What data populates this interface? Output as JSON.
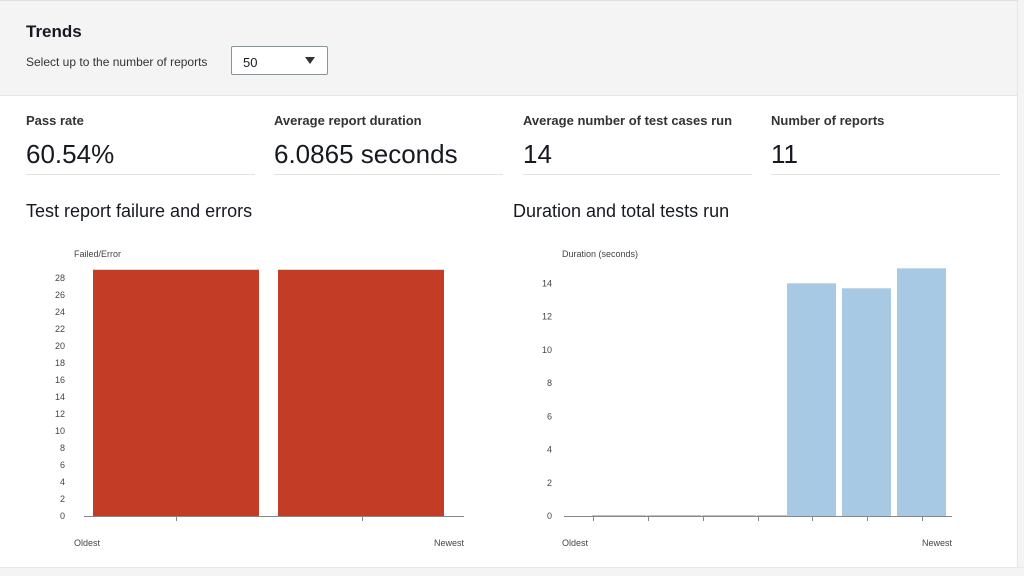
{
  "header": {
    "title": "Trends",
    "select_label": "Select up to the number of reports",
    "select_value": "50"
  },
  "stats": [
    {
      "label": "Pass rate",
      "value": "60.54%"
    },
    {
      "label": "Average report duration",
      "value": "6.0865 seconds"
    },
    {
      "label": "Average number of test cases run",
      "value": "14"
    },
    {
      "label": "Number of reports",
      "value": "11"
    }
  ],
  "chart_data": [
    {
      "type": "bar",
      "title": "Test report failure and errors",
      "ylabel": "Failed/Error",
      "x_start_label": "Oldest",
      "x_end_label": "Newest",
      "yticks": [
        0,
        2,
        4,
        6,
        8,
        10,
        12,
        14,
        16,
        18,
        20,
        22,
        24,
        26,
        28
      ],
      "ylim": [
        0,
        28.5
      ],
      "values": [
        29,
        29
      ],
      "color": "#c33d26"
    },
    {
      "type": "bar",
      "title": "Duration and total tests run",
      "ylabel": "Duration (seconds)",
      "x_start_label": "Oldest",
      "x_end_label": "Newest",
      "yticks": [
        0,
        2,
        4,
        6,
        8,
        10,
        12,
        14
      ],
      "ylim": [
        0,
        14.8
      ],
      "values": [
        0,
        0,
        0,
        0,
        14,
        13.7,
        14.9
      ],
      "color": "#a7c9e4"
    }
  ]
}
